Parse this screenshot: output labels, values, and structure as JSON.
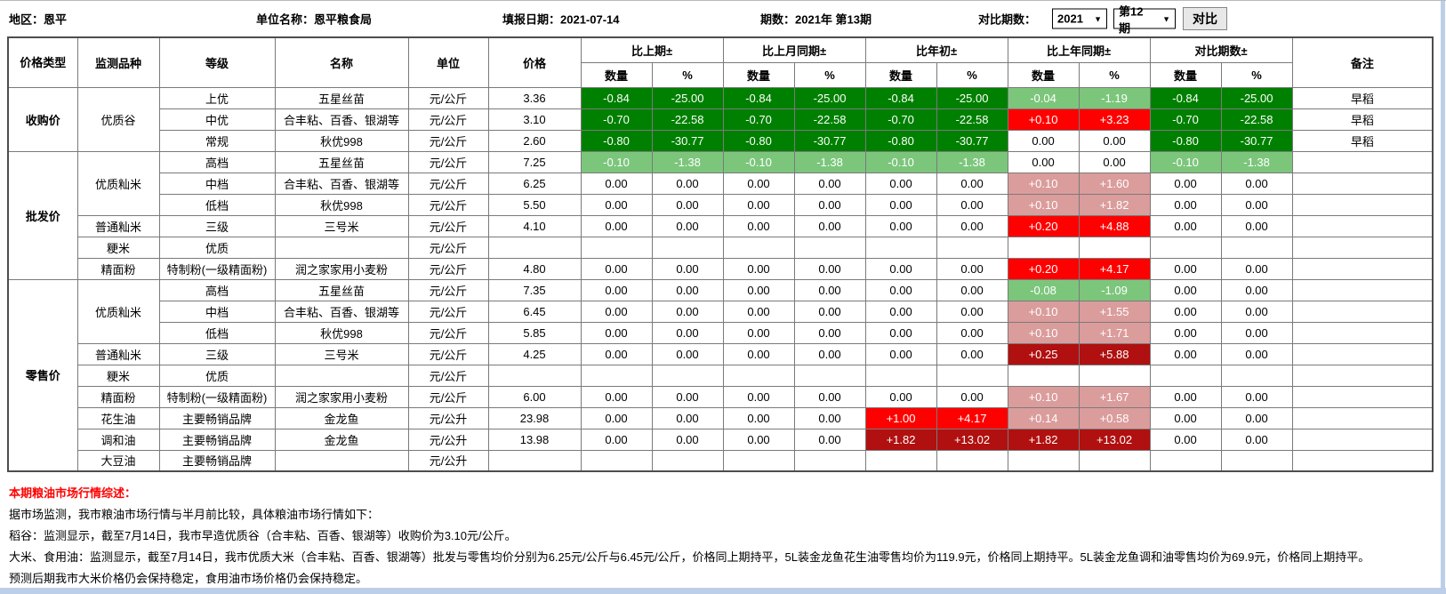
{
  "top_bar": {
    "region": "地区：恩平",
    "unit_name": "单位名称：恩平粮食局",
    "report_date": "填报日期：2021-07-14",
    "period": "期数：2021年 第13期",
    "compare_label": "对比期数：",
    "year_value": "2021",
    "issue_value": "第12期",
    "compare_button": "对比"
  },
  "table": {
    "col_headers": [
      "价格类型",
      "监测品种",
      "等级",
      "名称",
      "单位",
      "价格"
    ],
    "group_headers": [
      "比上期±",
      "比上月同期±",
      "比年初±",
      "比上年同期±",
      "对比期数±"
    ],
    "sub_headers": [
      "数量",
      "%"
    ],
    "remark_header": "备注",
    "rows": [
      [
        {
          "t": "收购价",
          "rs": 3
        },
        {
          "t": "优质谷",
          "rs": 3
        },
        {
          "t": "上优"
        },
        {
          "t": "五星丝苗"
        },
        {
          "t": "元/公斤"
        },
        {
          "t": "3.36"
        },
        {
          "t": "-0.84",
          "c": "dg"
        },
        {
          "t": "-25.00",
          "c": "dg"
        },
        {
          "t": "-0.84",
          "c": "dg"
        },
        {
          "t": "-25.00",
          "c": "dg"
        },
        {
          "t": "-0.84",
          "c": "dg"
        },
        {
          "t": "-25.00",
          "c": "dg"
        },
        {
          "t": "-0.04",
          "c": "lg"
        },
        {
          "t": "-1.19",
          "c": "lg"
        },
        {
          "t": "-0.84",
          "c": "dg"
        },
        {
          "t": "-25.00",
          "c": "dg"
        },
        {
          "t": "早稻"
        }
      ],
      [
        {
          "t": "中优"
        },
        {
          "t": "合丰粘、百香、银湖等"
        },
        {
          "t": "元/公斤"
        },
        {
          "t": "3.10"
        },
        {
          "t": "-0.70",
          "c": "dg"
        },
        {
          "t": "-22.58",
          "c": "dg"
        },
        {
          "t": "-0.70",
          "c": "dg"
        },
        {
          "t": "-22.58",
          "c": "dg"
        },
        {
          "t": "-0.70",
          "c": "dg"
        },
        {
          "t": "-22.58",
          "c": "dg"
        },
        {
          "t": "+0.10",
          "c": "rd"
        },
        {
          "t": "+3.23",
          "c": "rd"
        },
        {
          "t": "-0.70",
          "c": "dg"
        },
        {
          "t": "-22.58",
          "c": "dg"
        },
        {
          "t": "早稻"
        }
      ],
      [
        {
          "t": "常规"
        },
        {
          "t": "秋优998"
        },
        {
          "t": "元/公斤"
        },
        {
          "t": "2.60"
        },
        {
          "t": "-0.80",
          "c": "dg"
        },
        {
          "t": "-30.77",
          "c": "dg"
        },
        {
          "t": "-0.80",
          "c": "dg"
        },
        {
          "t": "-30.77",
          "c": "dg"
        },
        {
          "t": "-0.80",
          "c": "dg"
        },
        {
          "t": "-30.77",
          "c": "dg"
        },
        {
          "t": "0.00"
        },
        {
          "t": "0.00"
        },
        {
          "t": "-0.80",
          "c": "dg"
        },
        {
          "t": "-30.77",
          "c": "dg"
        },
        {
          "t": "早稻"
        }
      ],
      [
        {
          "t": "批发价",
          "rs": 6
        },
        {
          "t": "优质籼米",
          "rs": 3
        },
        {
          "t": "高档"
        },
        {
          "t": "五星丝苗"
        },
        {
          "t": "元/公斤"
        },
        {
          "t": "7.25"
        },
        {
          "t": "-0.10",
          "c": "lg"
        },
        {
          "t": "-1.38",
          "c": "lg"
        },
        {
          "t": "-0.10",
          "c": "lg"
        },
        {
          "t": "-1.38",
          "c": "lg"
        },
        {
          "t": "-0.10",
          "c": "lg"
        },
        {
          "t": "-1.38",
          "c": "lg"
        },
        {
          "t": "0.00"
        },
        {
          "t": "0.00"
        },
        {
          "t": "-0.10",
          "c": "lg"
        },
        {
          "t": "-1.38",
          "c": "lg"
        },
        {
          "t": ""
        }
      ],
      [
        {
          "t": "中档"
        },
        {
          "t": "合丰粘、百香、银湖等"
        },
        {
          "t": "元/公斤"
        },
        {
          "t": "6.25"
        },
        {
          "t": "0.00"
        },
        {
          "t": "0.00"
        },
        {
          "t": "0.00"
        },
        {
          "t": "0.00"
        },
        {
          "t": "0.00"
        },
        {
          "t": "0.00"
        },
        {
          "t": "+0.10",
          "c": "pk"
        },
        {
          "t": "+1.60",
          "c": "pk"
        },
        {
          "t": "0.00"
        },
        {
          "t": "0.00"
        },
        {
          "t": ""
        }
      ],
      [
        {
          "t": "低档"
        },
        {
          "t": "秋优998"
        },
        {
          "t": "元/公斤"
        },
        {
          "t": "5.50"
        },
        {
          "t": "0.00"
        },
        {
          "t": "0.00"
        },
        {
          "t": "0.00"
        },
        {
          "t": "0.00"
        },
        {
          "t": "0.00"
        },
        {
          "t": "0.00"
        },
        {
          "t": "+0.10",
          "c": "pk"
        },
        {
          "t": "+1.82",
          "c": "pk"
        },
        {
          "t": "0.00"
        },
        {
          "t": "0.00"
        },
        {
          "t": ""
        }
      ],
      [
        {
          "t": "普通籼米"
        },
        {
          "t": "三级"
        },
        {
          "t": "三号米"
        },
        {
          "t": "元/公斤"
        },
        {
          "t": "4.10"
        },
        {
          "t": "0.00"
        },
        {
          "t": "0.00"
        },
        {
          "t": "0.00"
        },
        {
          "t": "0.00"
        },
        {
          "t": "0.00"
        },
        {
          "t": "0.00"
        },
        {
          "t": "+0.20",
          "c": "rd"
        },
        {
          "t": "+4.88",
          "c": "rd"
        },
        {
          "t": "0.00"
        },
        {
          "t": "0.00"
        },
        {
          "t": ""
        }
      ],
      [
        {
          "t": "粳米"
        },
        {
          "t": "优质"
        },
        {
          "t": ""
        },
        {
          "t": "元/公斤"
        },
        {
          "t": ""
        },
        {
          "t": ""
        },
        {
          "t": ""
        },
        {
          "t": ""
        },
        {
          "t": ""
        },
        {
          "t": ""
        },
        {
          "t": ""
        },
        {
          "t": ""
        },
        {
          "t": ""
        },
        {
          "t": ""
        },
        {
          "t": ""
        },
        {
          "t": ""
        }
      ],
      [
        {
          "t": "精面粉"
        },
        {
          "t": "特制粉(一级精面粉)"
        },
        {
          "t": "润之家家用小麦粉"
        },
        {
          "t": "元/公斤"
        },
        {
          "t": "4.80"
        },
        {
          "t": "0.00"
        },
        {
          "t": "0.00"
        },
        {
          "t": "0.00"
        },
        {
          "t": "0.00"
        },
        {
          "t": "0.00"
        },
        {
          "t": "0.00"
        },
        {
          "t": "+0.20",
          "c": "rd"
        },
        {
          "t": "+4.17",
          "c": "rd"
        },
        {
          "t": "0.00"
        },
        {
          "t": "0.00"
        },
        {
          "t": ""
        }
      ],
      [
        {
          "t": "零售价",
          "rs": 9
        },
        {
          "t": "优质籼米",
          "rs": 3
        },
        {
          "t": "高档"
        },
        {
          "t": "五星丝苗"
        },
        {
          "t": "元/公斤"
        },
        {
          "t": "7.35"
        },
        {
          "t": "0.00"
        },
        {
          "t": "0.00"
        },
        {
          "t": "0.00"
        },
        {
          "t": "0.00"
        },
        {
          "t": "0.00"
        },
        {
          "t": "0.00"
        },
        {
          "t": "-0.08",
          "c": "lg"
        },
        {
          "t": "-1.09",
          "c": "lg"
        },
        {
          "t": "0.00"
        },
        {
          "t": "0.00"
        },
        {
          "t": ""
        }
      ],
      [
        {
          "t": "中档"
        },
        {
          "t": "合丰粘、百香、银湖等"
        },
        {
          "t": "元/公斤"
        },
        {
          "t": "6.45"
        },
        {
          "t": "0.00"
        },
        {
          "t": "0.00"
        },
        {
          "t": "0.00"
        },
        {
          "t": "0.00"
        },
        {
          "t": "0.00"
        },
        {
          "t": "0.00"
        },
        {
          "t": "+0.10",
          "c": "pk"
        },
        {
          "t": "+1.55",
          "c": "pk"
        },
        {
          "t": "0.00"
        },
        {
          "t": "0.00"
        },
        {
          "t": ""
        }
      ],
      [
        {
          "t": "低档"
        },
        {
          "t": "秋优998"
        },
        {
          "t": "元/公斤"
        },
        {
          "t": "5.85"
        },
        {
          "t": "0.00"
        },
        {
          "t": "0.00"
        },
        {
          "t": "0.00"
        },
        {
          "t": "0.00"
        },
        {
          "t": "0.00"
        },
        {
          "t": "0.00"
        },
        {
          "t": "+0.10",
          "c": "pk"
        },
        {
          "t": "+1.71",
          "c": "pk"
        },
        {
          "t": "0.00"
        },
        {
          "t": "0.00"
        },
        {
          "t": ""
        }
      ],
      [
        {
          "t": "普通籼米"
        },
        {
          "t": "三级"
        },
        {
          "t": "三号米"
        },
        {
          "t": "元/公斤"
        },
        {
          "t": "4.25"
        },
        {
          "t": "0.00"
        },
        {
          "t": "0.00"
        },
        {
          "t": "0.00"
        },
        {
          "t": "0.00"
        },
        {
          "t": "0.00"
        },
        {
          "t": "0.00"
        },
        {
          "t": "+0.25",
          "c": "dr"
        },
        {
          "t": "+5.88",
          "c": "dr"
        },
        {
          "t": "0.00"
        },
        {
          "t": "0.00"
        },
        {
          "t": ""
        }
      ],
      [
        {
          "t": "粳米"
        },
        {
          "t": "优质"
        },
        {
          "t": ""
        },
        {
          "t": "元/公斤"
        },
        {
          "t": ""
        },
        {
          "t": ""
        },
        {
          "t": ""
        },
        {
          "t": ""
        },
        {
          "t": ""
        },
        {
          "t": ""
        },
        {
          "t": ""
        },
        {
          "t": ""
        },
        {
          "t": ""
        },
        {
          "t": ""
        },
        {
          "t": ""
        },
        {
          "t": ""
        }
      ],
      [
        {
          "t": "精面粉"
        },
        {
          "t": "特制粉(一级精面粉)"
        },
        {
          "t": "润之家家用小麦粉"
        },
        {
          "t": "元/公斤"
        },
        {
          "t": "6.00"
        },
        {
          "t": "0.00"
        },
        {
          "t": "0.00"
        },
        {
          "t": "0.00"
        },
        {
          "t": "0.00"
        },
        {
          "t": "0.00"
        },
        {
          "t": "0.00"
        },
        {
          "t": "+0.10",
          "c": "pk"
        },
        {
          "t": "+1.67",
          "c": "pk"
        },
        {
          "t": "0.00"
        },
        {
          "t": "0.00"
        },
        {
          "t": ""
        }
      ],
      [
        {
          "t": "花生油"
        },
        {
          "t": "主要畅销品牌"
        },
        {
          "t": "金龙鱼"
        },
        {
          "t": "元/公升"
        },
        {
          "t": "23.98"
        },
        {
          "t": "0.00"
        },
        {
          "t": "0.00"
        },
        {
          "t": "0.00"
        },
        {
          "t": "0.00"
        },
        {
          "t": "+1.00",
          "c": "rd"
        },
        {
          "t": "+4.17",
          "c": "rd"
        },
        {
          "t": "+0.14",
          "c": "pk"
        },
        {
          "t": "+0.58",
          "c": "pk"
        },
        {
          "t": "0.00"
        },
        {
          "t": "0.00"
        },
        {
          "t": ""
        }
      ],
      [
        {
          "t": "调和油"
        },
        {
          "t": "主要畅销品牌"
        },
        {
          "t": "金龙鱼"
        },
        {
          "t": "元/公升"
        },
        {
          "t": "13.98"
        },
        {
          "t": "0.00"
        },
        {
          "t": "0.00"
        },
        {
          "t": "0.00"
        },
        {
          "t": "0.00"
        },
        {
          "t": "+1.82",
          "c": "dr"
        },
        {
          "t": "+13.02",
          "c": "dr"
        },
        {
          "t": "+1.82",
          "c": "dr"
        },
        {
          "t": "+13.02",
          "c": "dr"
        },
        {
          "t": "0.00"
        },
        {
          "t": "0.00"
        },
        {
          "t": ""
        }
      ],
      [
        {
          "t": "大豆油"
        },
        {
          "t": "主要畅销品牌"
        },
        {
          "t": ""
        },
        {
          "t": "元/公升"
        },
        {
          "t": ""
        },
        {
          "t": ""
        },
        {
          "t": ""
        },
        {
          "t": ""
        },
        {
          "t": ""
        },
        {
          "t": ""
        },
        {
          "t": ""
        },
        {
          "t": ""
        },
        {
          "t": ""
        },
        {
          "t": ""
        },
        {
          "t": ""
        },
        {
          "t": ""
        }
      ]
    ]
  },
  "summary": {
    "title": "本期粮油市场行情综述：",
    "lines": [
      "据市场监测，我市粮油市场行情与半月前比较，具体粮油市场行情如下：",
      "稻谷：监测显示，截至7月14日，我市早造优质谷（合丰粘、百香、银湖等）收购价为3.10元/公斤。",
      "大米、食用油：监测显示，截至7月14日，我市优质大米（合丰粘、百香、银湖等）批发与零售均价分别为6.25元/公斤与6.45元/公斤，价格同上期持平，5L装金龙鱼花生油零售均价为119.9元，价格同上期持平。5L装金龙鱼调和油零售均价为69.9元，价格同上期持平。",
      "预测后期我市大米价格仍会保持稳定，食用油市场价格仍会保持稳定。"
    ]
  },
  "colors": {
    "decrease_strong": "#008000",
    "decrease_mild": "#7CC67C",
    "increase_strong": "#FF0000",
    "increase_mild": "#DB9C9C",
    "increase_severe": "#B01010",
    "scrollbar": "#BDCFE8",
    "summary_title": "#FF0000"
  }
}
